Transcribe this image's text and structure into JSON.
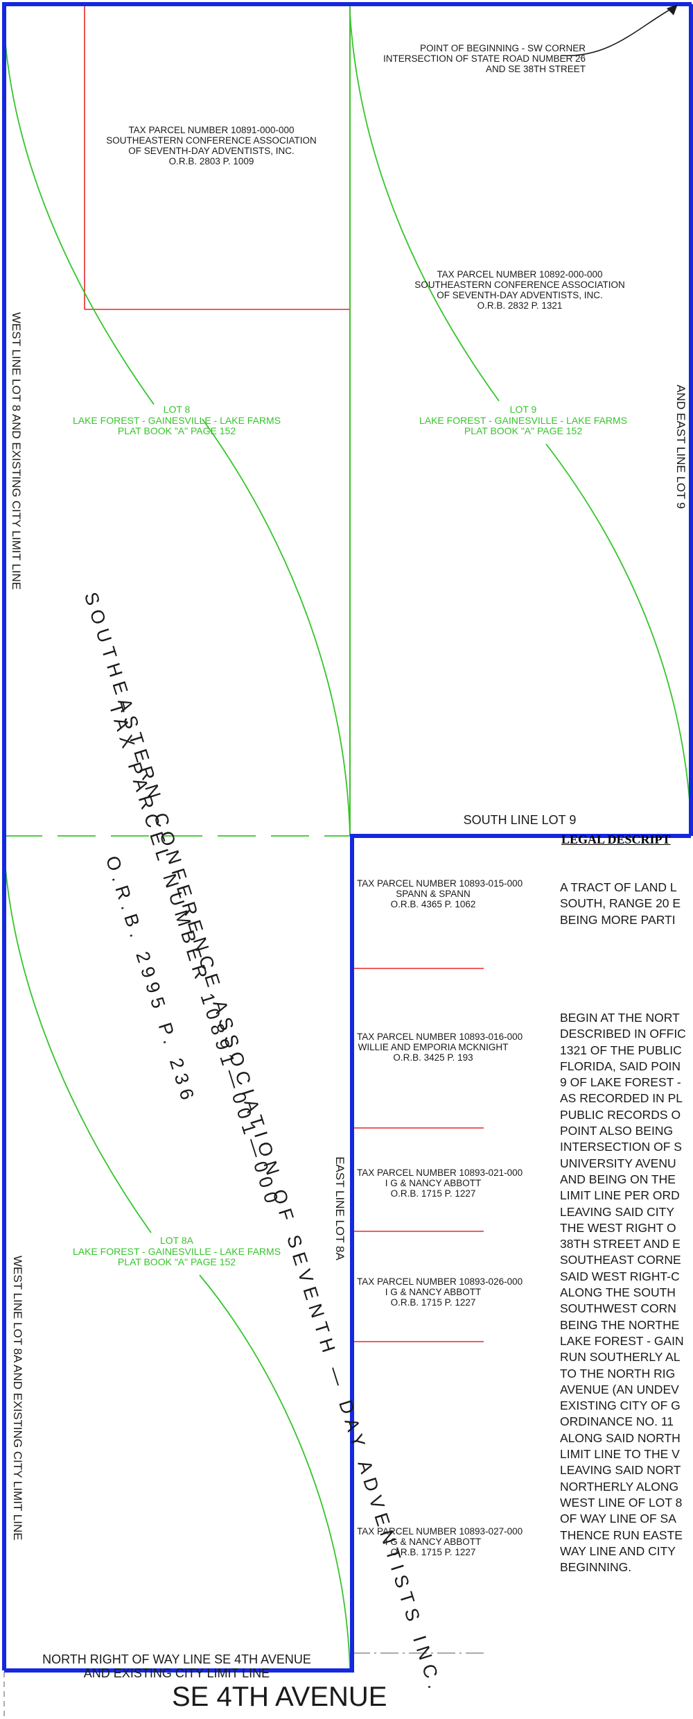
{
  "pob": {
    "line1": "POINT OF BEGINNING - SW CORNER",
    "line2": "INTERSECTION OF STATE ROAD NUMBER 26",
    "line3": "AND SE 38TH STREET"
  },
  "parcels": [
    {
      "id": "p10891",
      "line1": "TAX PARCEL NUMBER 10891-000-000",
      "line2": "SOUTHEASTERN CONFERENCE ASSOCIATION",
      "line3": "OF SEVENTH-DAY ADVENTISTS, INC.",
      "line4": "O.R.B. 2803 P. 1009"
    },
    {
      "id": "p10892",
      "line1": "TAX PARCEL NUMBER 10892-000-000",
      "line2": "SOUTHEASTERN CONFERENCE ASSOCIATION",
      "line3": "OF SEVENTH-DAY ADVENTISTS, INC.",
      "line4": "O.R.B. 2832 P. 1321"
    },
    {
      "id": "p015",
      "line1": "TAX PARCEL NUMBER 10893-015-000",
      "line2": "SPANN & SPANN",
      "line3": "O.R.B. 4365 P. 1062"
    },
    {
      "id": "p016",
      "line1": "TAX PARCEL NUMBER 10893-016-000",
      "line2": "WILLIE AND EMPORIA MCKNIGHT",
      "line3": "O.R.B. 3425 P. 193"
    },
    {
      "id": "p021",
      "line1": "TAX PARCEL NUMBER 10893-021-000",
      "line2": "I G & NANCY ABBOTT",
      "line3": "O.R.B. 1715 P. 1227"
    },
    {
      "id": "p026",
      "line1": "TAX PARCEL NUMBER 10893-026-000",
      "line2": "I G & NANCY ABBOTT",
      "line3": "O.R.B. 1715 P. 1227"
    },
    {
      "id": "p027",
      "line1": "TAX PARCEL NUMBER 10893-027-000",
      "line2": "I G & NANCY ABBOTT",
      "line3": "O.R.B. 1715 P. 1227"
    }
  ],
  "lots": {
    "lot8": {
      "name": "LOT 8",
      "sub": "LAKE FOREST - GAINESVILLE - LAKE FARMS",
      "plat": "PLAT BOOK \"A\" PAGE 152"
    },
    "lot9": {
      "name": "LOT 9",
      "sub": "LAKE FOREST - GAINESVILLE - LAKE FARMS",
      "plat": "PLAT BOOK \"A\" PAGE 152"
    },
    "lot8a": {
      "name": "LOT 8A",
      "sub": "LAKE FOREST - GAINESVILLE - LAKE FARMS",
      "plat": "PLAT BOOK \"A\" PAGE 152"
    }
  },
  "lines": {
    "west_lot8": "WEST LINE LOT 8 AND EXISTING CITY LIMIT LINE",
    "east_lot9": "AND EAST LINE LOT 9",
    "south_lot9": "SOUTH LINE LOT 9",
    "east_lot8a": "EAST LINE LOT 8A",
    "west_lot8a": "WEST LINE LOT 8A AND EXISTING CITY LIMIT LINE",
    "north_row_1": "NORTH RIGHT OF WAY LINE SE 4TH AVENUE",
    "north_row_2": "AND EXISTING CITY LIMIT LINE"
  },
  "slanted": {
    "line1": "SOUTHEASTERN CONFERENCE ASSOCIATION OF SEVENTH — DAY ADVENTISTS INC.",
    "line2": "TAX PARCEL NUMBER 10891—001—000",
    "line3": "O.R.B. 2995 P. 236"
  },
  "legal": {
    "title": "LEGAL DESCRIPT",
    "intro": [
      "A TRACT OF LAND L",
      "SOUTH, RANGE 20 E",
      "BEING MORE PARTI"
    ],
    "body": [
      "BEGIN AT THE NORT",
      "DESCRIBED IN OFFIC",
      "1321 OF THE PUBLIC",
      "FLORIDA, SAID POIN",
      "9 OF LAKE FOREST -",
      "AS RECORDED IN PL",
      "PUBLIC RECORDS O",
      "POINT ALSO BEING",
      "INTERSECTION OF S",
      "UNIVERSITY AVENU",
      "AND BEING ON THE",
      "LIMIT LINE PER ORD",
      "LEAVING SAID CITY",
      "THE WEST RIGHT O",
      "38TH STREET AND E",
      "SOUTHEAST CORNE",
      "SAID WEST RIGHT-C",
      "ALONG THE SOUTH",
      "SOUTHWEST CORN",
      "BEING THE NORTHE",
      "LAKE FOREST - GAIN",
      "RUN SOUTHERLY AL",
      "TO THE NORTH RIG",
      "AVENUE (AN UNDEV",
      "EXISTING CITY OF G",
      "ORDINANCE NO. 11",
      "ALONG SAID NORTH",
      "LIMIT LINE TO THE V",
      "LEAVING SAID NORT",
      "NORTHERLY ALONG",
      "WEST LINE OF LOT 8",
      "OF WAY LINE OF SA",
      "THENCE RUN EASTE",
      "WAY LINE AND CITY",
      "BEGINNING."
    ]
  },
  "street_title": "SE 4TH AVENUE",
  "colors": {
    "boundary": "#1428e0",
    "lot_line": "#35c52a",
    "parcel_line": "#e8262a",
    "text": "#1a1a1a"
  }
}
